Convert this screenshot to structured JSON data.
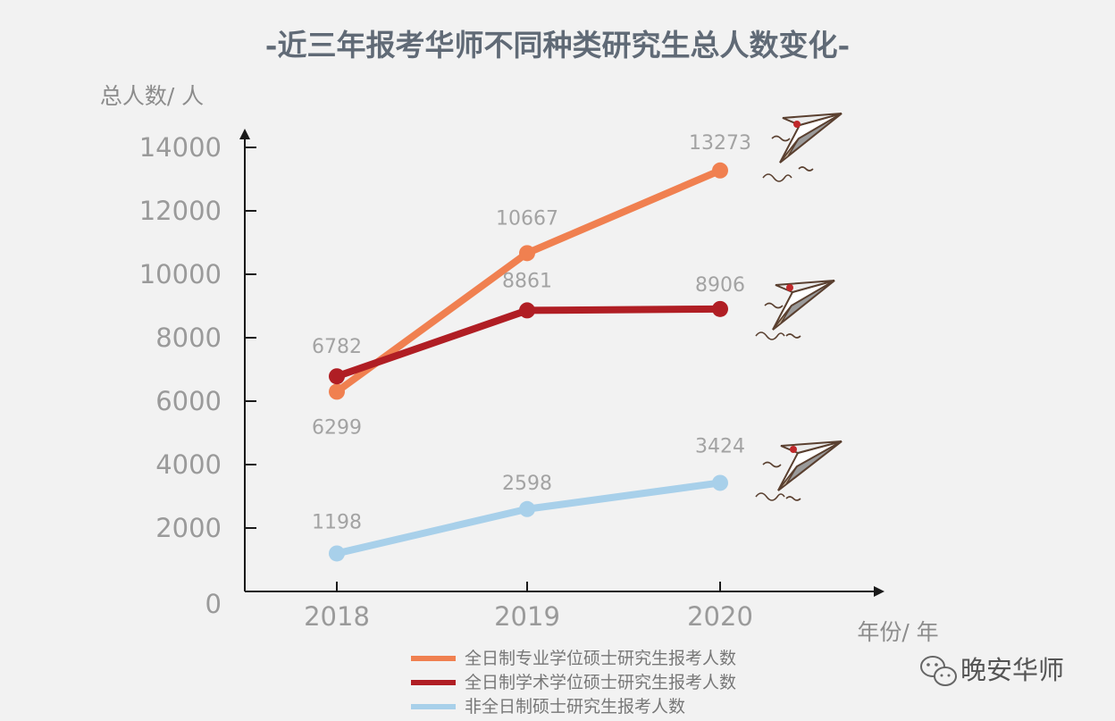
{
  "chart_data": {
    "type": "line",
    "title": "-近三年报考华师不同种类研究生总人数变化-",
    "ylabel": "总人数/ 人",
    "xlabel": "年份/ 年",
    "categories": [
      "2018",
      "2019",
      "2020"
    ],
    "ylim": [
      0,
      14000
    ],
    "yticks": [
      0,
      2000,
      4000,
      6000,
      8000,
      10000,
      12000,
      14000
    ],
    "grid": false,
    "legend_position": "bottom",
    "series": [
      {
        "name": "全日制专业学位硕士研究生报考人数",
        "values": [
          6299,
          10667,
          13273
        ],
        "color": "#f08050"
      },
      {
        "name": "全日制学术学位硕士研究生报考人数",
        "values": [
          6782,
          8861,
          8906
        ],
        "color": "#b01e24"
      },
      {
        "name": "非全日制硕士研究生报考人数",
        "values": [
          1198,
          2598,
          3424
        ],
        "color": "#a8d0ea"
      }
    ]
  },
  "watermark": {
    "text": "晚安华师",
    "icon": "wechat-icon"
  },
  "decorations": {
    "icon": "paper-plane-icon"
  }
}
